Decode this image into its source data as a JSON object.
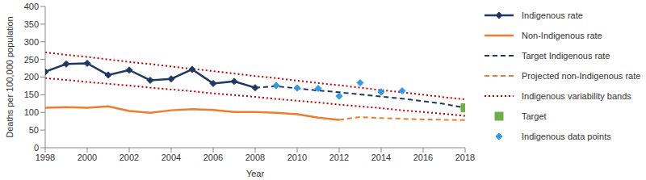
{
  "chart_data": {
    "type": "line",
    "x_label": "Year",
    "y_label": "Deaths per 100,000 population",
    "x": [
      1998,
      1999,
      2000,
      2001,
      2002,
      2003,
      2004,
      2005,
      2006,
      2007,
      2008,
      2009,
      2010,
      2011,
      2012,
      2013,
      2014,
      2015,
      2016,
      2017,
      2018
    ],
    "xlim": [
      1998,
      2018
    ],
    "xticks": [
      1998,
      2000,
      2002,
      2004,
      2006,
      2008,
      2010,
      2012,
      2014,
      2016,
      2018
    ],
    "ylim": [
      0,
      400
    ],
    "yticks": [
      0,
      50,
      100,
      150,
      200,
      250,
      300,
      350,
      400
    ],
    "grid": false,
    "legend": "right",
    "series": [
      {
        "name": "Indigenous rate",
        "type": "line",
        "color": "#1f3864",
        "line_style": "solid",
        "marker": "diamond",
        "values": [
          215,
          237,
          239,
          206,
          220,
          191,
          195,
          222,
          182,
          188,
          170,
          null,
          null,
          null,
          null,
          null,
          null,
          null,
          null,
          null,
          null
        ]
      },
      {
        "name": "Non-Indigenous rate",
        "type": "line",
        "color": "#ed7d31",
        "line_style": "solid",
        "marker": "none",
        "values": [
          113,
          115,
          113,
          117,
          104,
          99,
          106,
          109,
          107,
          101,
          101,
          99,
          95,
          85,
          79,
          null,
          null,
          null,
          null,
          null,
          null
        ]
      },
      {
        "name": "Target Indigenous rate",
        "type": "line",
        "color": "#1f3864",
        "line_style": "dashed",
        "marker": "none",
        "values": [
          null,
          null,
          null,
          null,
          null,
          null,
          null,
          null,
          null,
          null,
          170,
          174,
          168,
          162,
          157,
          151,
          145,
          139,
          132,
          124,
          113
        ]
      },
      {
        "name": "Projected non-Indigenous rate",
        "type": "line",
        "color": "#ed7d31",
        "line_style": "dashed",
        "marker": "none",
        "values": [
          null,
          null,
          null,
          null,
          null,
          null,
          null,
          null,
          null,
          null,
          null,
          null,
          null,
          null,
          79,
          87,
          84,
          82,
          80,
          79,
          78
        ]
      },
      {
        "name": "Indigenous variability bands",
        "type": "line",
        "color": "#c00000",
        "line_style": "dotted",
        "marker": "none",
        "values": [
          270,
          263,
          257,
          250,
          243,
          237,
          230,
          223,
          217,
          210,
          203,
          197,
          190,
          183,
          177,
          170,
          163,
          157,
          150,
          143,
          137
        ],
        "lower": [
          197,
          192,
          186,
          181,
          176,
          170,
          165,
          160,
          154,
          149,
          144,
          138,
          133,
          128,
          122,
          117,
          112,
          106,
          101,
          96,
          90
        ]
      },
      {
        "name": "Target",
        "type": "scatter",
        "color": "#70ad47",
        "marker": "square",
        "values": [
          null,
          null,
          null,
          null,
          null,
          null,
          null,
          null,
          null,
          null,
          null,
          null,
          null,
          null,
          null,
          null,
          null,
          null,
          null,
          null,
          113
        ]
      },
      {
        "name": "Indigenous data points",
        "type": "scatter",
        "color": "#2e9bf0",
        "marker": "diamond",
        "values": [
          null,
          null,
          null,
          null,
          null,
          null,
          null,
          null,
          null,
          null,
          null,
          176,
          169,
          168,
          146,
          184,
          158,
          161,
          null,
          null,
          null
        ]
      }
    ]
  }
}
